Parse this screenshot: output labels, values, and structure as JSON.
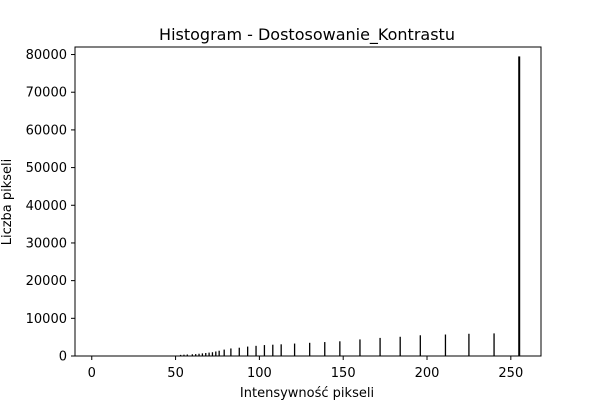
{
  "chart_data": {
    "type": "bar",
    "title": "Histogram - Dostosowanie_Kontrastu",
    "xlabel": "Intensywność pikseli",
    "ylabel": "Liczba pikseli",
    "xlim": [
      -10,
      268
    ],
    "ylim": [
      0,
      82000
    ],
    "xticks": [
      0,
      50,
      100,
      150,
      200,
      250
    ],
    "yticks": [
      0,
      10000,
      20000,
      30000,
      40000,
      50000,
      60000,
      70000,
      80000
    ],
    "grid": false,
    "legend": "none",
    "bar_color": "#000000",
    "x": [
      53,
      55,
      57,
      60,
      62,
      64,
      66,
      68,
      70,
      72,
      74,
      76,
      79,
      83,
      88,
      93,
      98,
      103,
      108,
      113,
      121,
      130,
      139,
      148,
      160,
      172,
      184,
      196,
      211,
      225,
      240,
      255
    ],
    "values": [
      300,
      350,
      400,
      450,
      500,
      600,
      700,
      800,
      900,
      1000,
      1200,
      1400,
      1700,
      2000,
      2200,
      2500,
      2700,
      2900,
      3000,
      3100,
      3300,
      3500,
      3700,
      3900,
      4400,
      4800,
      5100,
      5500,
      5700,
      5900,
      6000,
      79500
    ]
  }
}
